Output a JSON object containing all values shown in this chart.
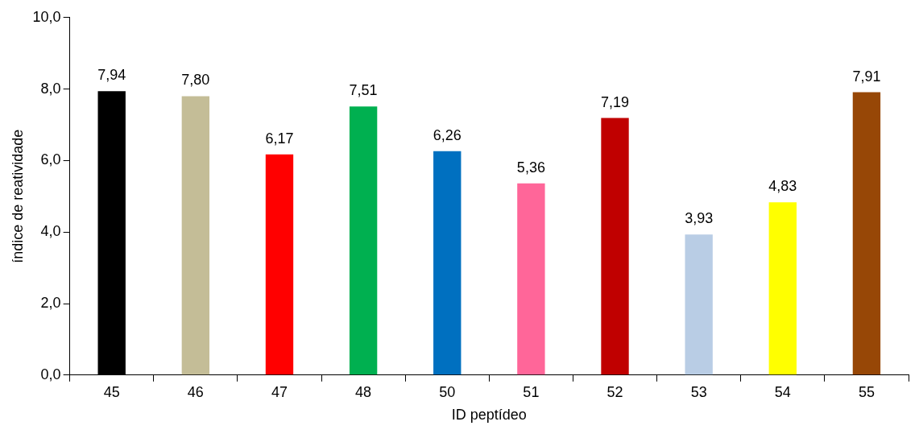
{
  "chart_data": {
    "type": "bar",
    "xlabel": "ID peptídeo",
    "ylabel": "índice de reatividade",
    "categories": [
      "45",
      "46",
      "47",
      "48",
      "50",
      "51",
      "52",
      "53",
      "54",
      "55"
    ],
    "values": [
      7.94,
      7.8,
      6.17,
      7.51,
      6.26,
      5.36,
      7.19,
      3.93,
      4.83,
      7.91
    ],
    "value_labels": [
      "7,94",
      "7,80",
      "6,17",
      "7,51",
      "6,26",
      "5,36",
      "7,19",
      "3,93",
      "4,83",
      "7,91"
    ],
    "colors": [
      "#000000",
      "#c4bd97",
      "#ff0000",
      "#00b050",
      "#0070c0",
      "#ff6699",
      "#c00000",
      "#b9cde5",
      "#ffff00",
      "#974706"
    ],
    "ylim": [
      0,
      10
    ],
    "yticks": [
      {
        "value": 0,
        "label": "0,0"
      },
      {
        "value": 2,
        "label": "2,0"
      },
      {
        "value": 4,
        "label": "4,0"
      },
      {
        "value": 6,
        "label": "6,0"
      },
      {
        "value": 8,
        "label": "8,0"
      },
      {
        "value": 10,
        "label": "10,0"
      }
    ],
    "grid": false,
    "legend": false
  }
}
